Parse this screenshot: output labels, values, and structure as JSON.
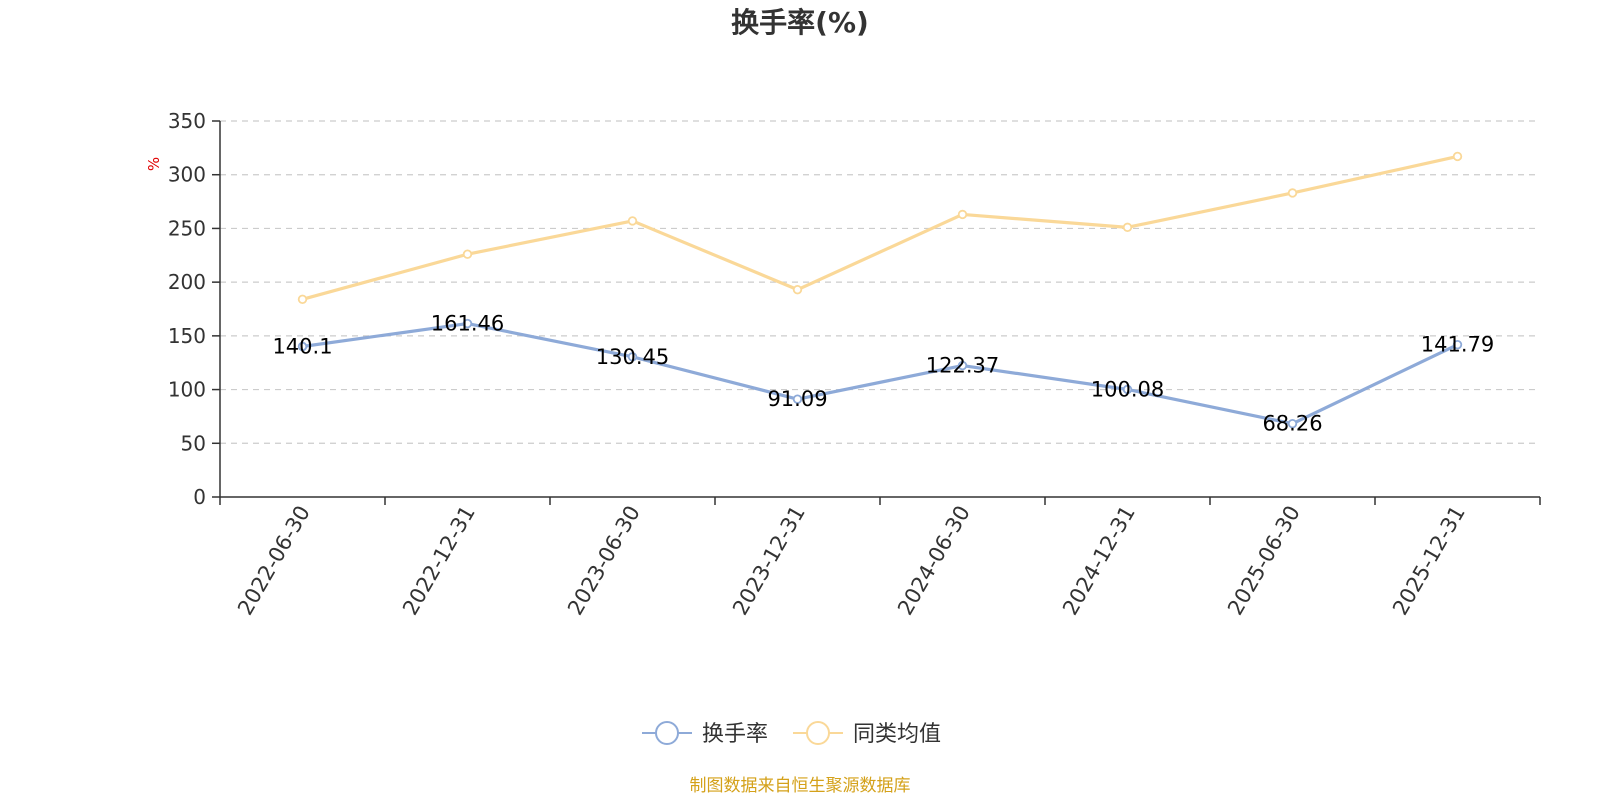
{
  "chart_data": {
    "type": "line",
    "title": "换手率(%)",
    "ylabel": "%",
    "xlabel": "",
    "ylim": [
      0,
      350
    ],
    "yticks": [
      0,
      50,
      100,
      150,
      200,
      250,
      300,
      350
    ],
    "grid": true,
    "legend_position": "bottom-center",
    "categories": [
      "2022-06-30",
      "2022-12-31",
      "2023-06-30",
      "2023-12-31",
      "2024-06-30",
      "2024-12-31",
      "2025-06-30",
      "2025-12-31"
    ],
    "series": [
      {
        "name": "换手率",
        "color": "#8eaad8",
        "values": [
          140.1,
          161.46,
          130.45,
          91.09,
          122.37,
          100.08,
          68.26,
          141.79
        ],
        "labels": [
          "140.1",
          "161.46",
          "130.45",
          "91.09",
          "122.37",
          "100.08",
          "68.26",
          "141.79"
        ],
        "show_labels": true
      },
      {
        "name": "同类均值",
        "color": "#fad898",
        "values": [
          184,
          226,
          257,
          193,
          263,
          251,
          283,
          317
        ],
        "show_labels": false
      }
    ],
    "source": "制图数据来自恒生聚源数据库"
  }
}
